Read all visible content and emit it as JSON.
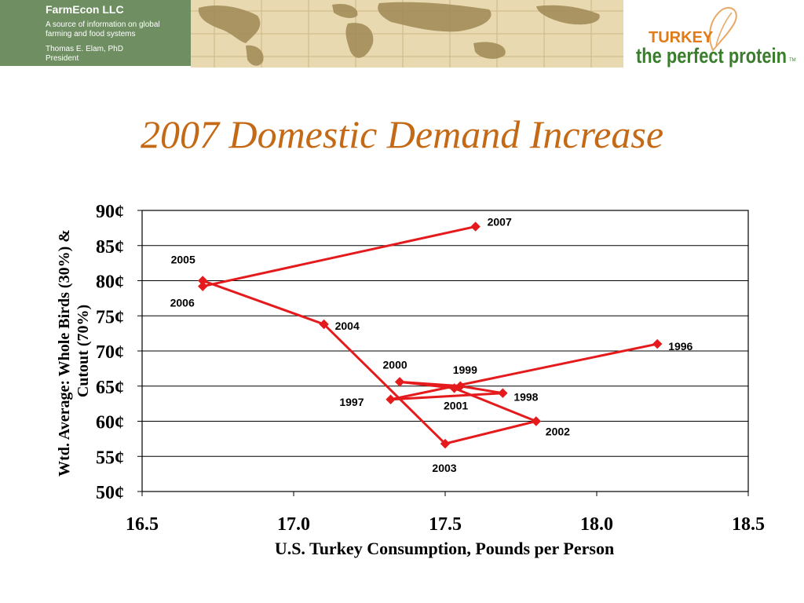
{
  "brand": {
    "name": "FarmEcon LLC",
    "tagline": "A source of information on global farming and food systems",
    "author_line1": "Thomas E. Elam, PhD",
    "author_line2": "President"
  },
  "logo": {
    "word1": "TURKEY",
    "word2": "the perfect protein",
    "tm": "TM"
  },
  "slide_title": "2007 Domestic Demand Increase",
  "colors": {
    "title": "#c46a16",
    "series": "#e41a1c",
    "brand_bg": "#6f8f63",
    "logo_green": "#3a7d2c",
    "logo_orange": "#e07b17"
  },
  "chart_data": {
    "type": "scatter",
    "connected": true,
    "xlabel": "U.S. Turkey Consumption, Pounds per Person",
    "ylabel": "Wtd. Average: Whole Birds (30%) & Cutout (70%)",
    "xlim": [
      16.5,
      18.5
    ],
    "ylim": [
      50,
      90
    ],
    "x_ticks": [
      "16.5",
      "17.0",
      "17.5",
      "18.0",
      "18.5"
    ],
    "y_ticks": [
      "50¢",
      "55¢",
      "60¢",
      "65¢",
      "70¢",
      "75¢",
      "80¢",
      "85¢",
      "90¢"
    ],
    "grid": "horizontal",
    "points": [
      {
        "label": "1996",
        "x": 18.2,
        "y": 71.0
      },
      {
        "label": "1997",
        "x": 17.32,
        "y": 63.1
      },
      {
        "label": "1998",
        "x": 17.69,
        "y": 64.0
      },
      {
        "label": "1999",
        "x": 17.55,
        "y": 65.0
      },
      {
        "label": "2000",
        "x": 17.35,
        "y": 65.6
      },
      {
        "label": "2001",
        "x": 17.53,
        "y": 64.7
      },
      {
        "label": "2002",
        "x": 17.8,
        "y": 60.0
      },
      {
        "label": "2003",
        "x": 17.5,
        "y": 56.8
      },
      {
        "label": "2004",
        "x": 17.1,
        "y": 73.8
      },
      {
        "label": "2005",
        "x": 16.7,
        "y": 80.0
      },
      {
        "label": "2006",
        "x": 16.7,
        "y": 79.2
      },
      {
        "label": "2007",
        "x": 17.6,
        "y": 87.7
      }
    ]
  }
}
